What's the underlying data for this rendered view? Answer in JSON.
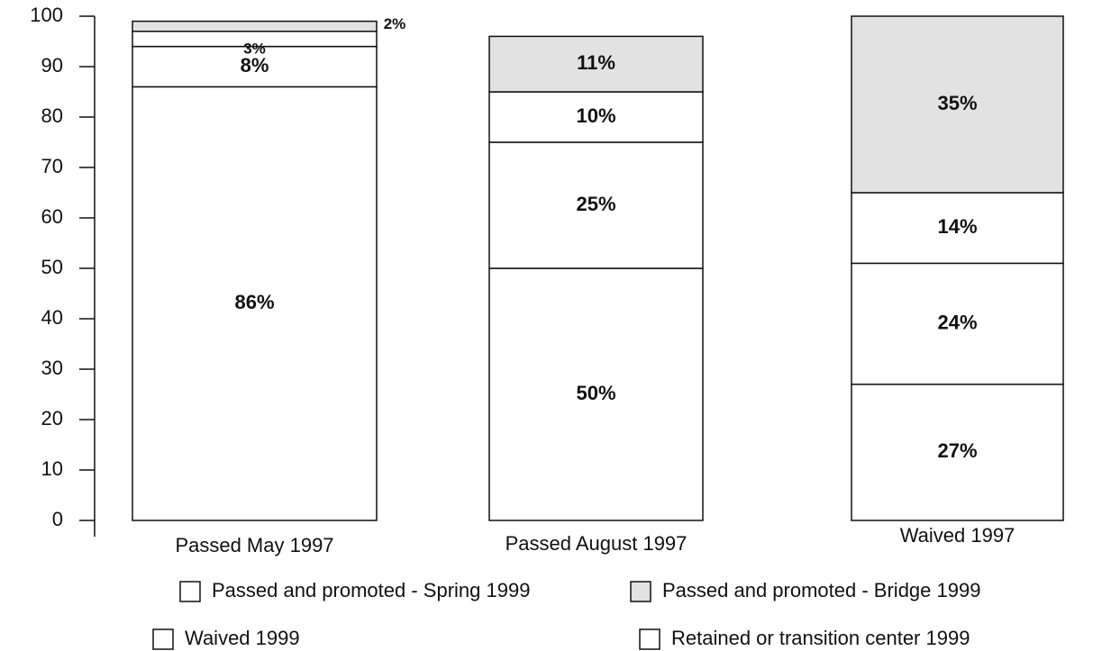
{
  "chart_data": {
    "type": "stacked_bar",
    "categories": [
      "Passed May 1997",
      "Passed August 1997",
      "Waived 1997"
    ],
    "series": [
      {
        "name": "Passed and promoted - Spring 1999",
        "color": "#ffffff",
        "values": [
          86,
          50,
          27
        ],
        "value_labels": [
          "86%",
          "50%",
          "27%"
        ]
      },
      {
        "name": "Waived 1999",
        "color": "#ffffff",
        "values": [
          8,
          25,
          24
        ],
        "value_labels": [
          "8%",
          "25%",
          "24%"
        ]
      },
      {
        "name": "Retained or transition center 1999",
        "color": "#ffffff",
        "values": [
          3,
          10,
          14
        ],
        "value_labels": [
          "3%",
          "10%",
          "14%"
        ]
      },
      {
        "name": "Passed and promoted - Bridge 1999",
        "color": "#e2e2e2",
        "values": [
          2,
          11,
          35
        ],
        "value_labels": [
          "2%",
          "11%",
          "35%"
        ]
      }
    ],
    "ylim": [
      0,
      100
    ],
    "yticks": [
      0,
      10,
      20,
      30,
      40,
      50,
      60,
      70,
      80,
      90,
      100
    ]
  }
}
